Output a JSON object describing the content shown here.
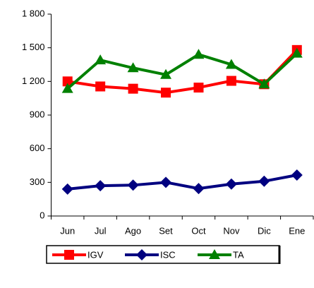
{
  "chart_data": {
    "type": "line",
    "categories": [
      "Jun",
      "Jul",
      "Ago",
      "Set",
      "Oct",
      "Nov",
      "Dic",
      "Ene"
    ],
    "series": [
      {
        "name": "IGV",
        "color": "#ff0000",
        "marker": "square",
        "values": [
          1200,
          1155,
          1135,
          1100,
          1145,
          1205,
          1175,
          1480
        ]
      },
      {
        "name": "ISC",
        "color": "#000080",
        "marker": "diamond",
        "values": [
          240,
          270,
          275,
          300,
          245,
          285,
          310,
          365
        ]
      },
      {
        "name": "TA",
        "color": "#008000",
        "marker": "triangle",
        "values": [
          1135,
          1390,
          1320,
          1260,
          1440,
          1350,
          1175,
          1450
        ]
      }
    ],
    "ylim": [
      0,
      1800
    ],
    "yticks": [
      0,
      300,
      600,
      900,
      {
        "value": 1200,
        "label": "1 200"
      },
      {
        "value": 1500,
        "label": "1 500"
      },
      {
        "value": 1800,
        "label": "1 800"
      }
    ],
    "grid": false,
    "legend": "bottom"
  }
}
